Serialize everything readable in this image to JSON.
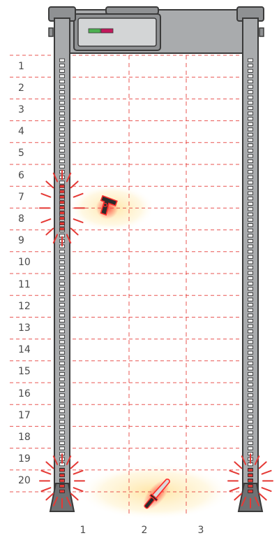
{
  "zones": {
    "rows": [
      "1",
      "2",
      "3",
      "4",
      "5",
      "6",
      "7",
      "8",
      "9",
      "10",
      "11",
      "12",
      "13",
      "14",
      "15",
      "16",
      "17",
      "18",
      "19",
      "20"
    ],
    "columns": [
      "1",
      "2",
      "3"
    ]
  },
  "alarms": [
    {
      "side": "left",
      "rows": [
        7,
        8
      ]
    },
    {
      "side": "left",
      "rows": [
        20
      ]
    },
    {
      "side": "right",
      "rows": [
        20
      ]
    }
  ],
  "detections": [
    {
      "object": "handgun-icon",
      "row": 7.5,
      "column": 1
    },
    {
      "object": "knife-icon",
      "row": 20.5,
      "column": 2
    }
  ],
  "colors": {
    "panel_fill": "#a9abad",
    "panel_stroke": "#3a3a3a",
    "grid_line": "#e53935",
    "alarm_ray": "#e53935",
    "led_active": "#e53935",
    "glow": "#ffe9a8"
  }
}
